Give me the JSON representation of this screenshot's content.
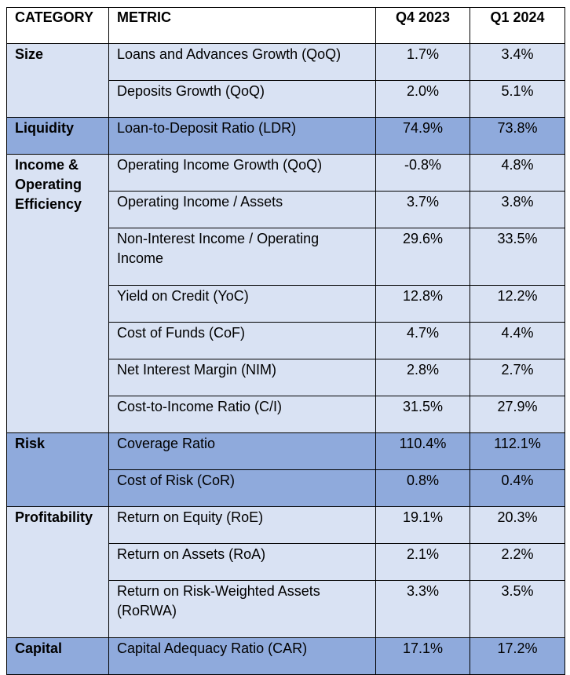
{
  "headers": [
    "CATEGORY",
    "METRIC",
    "Q4 2023",
    "Q1 2024"
  ],
  "groups": [
    {
      "category": "Size",
      "shade": "light",
      "rows": [
        {
          "metric": "Loans and Advances Growth (QoQ)",
          "q4_2023": "1.7%",
          "q1_2024": "3.4%"
        },
        {
          "metric": "Deposits Growth (QoQ)",
          "q4_2023": "2.0%",
          "q1_2024": "5.1%"
        }
      ]
    },
    {
      "category": "Liquidity",
      "shade": "dark",
      "rows": [
        {
          "metric": "Loan-to-Deposit Ratio (LDR)",
          "q4_2023": "74.9%",
          "q1_2024": "73.8%"
        }
      ]
    },
    {
      "category": "Income & Operating Efficiency",
      "shade": "light",
      "rows": [
        {
          "metric": "Operating Income Growth (QoQ)",
          "q4_2023": "-0.8%",
          "q1_2024": "4.8%"
        },
        {
          "metric": "Operating Income / Assets",
          "q4_2023": "3.7%",
          "q1_2024": "3.8%"
        },
        {
          "metric": "Non-Interest Income / Operating Income",
          "q4_2023": "29.6%",
          "q1_2024": "33.5%"
        },
        {
          "metric": "Yield on Credit (YoC)",
          "q4_2023": "12.8%",
          "q1_2024": "12.2%"
        },
        {
          "metric": "Cost of Funds (CoF)",
          "q4_2023": "4.7%",
          "q1_2024": "4.4%"
        },
        {
          "metric": "Net Interest Margin (NIM)",
          "q4_2023": "2.8%",
          "q1_2024": "2.7%"
        },
        {
          "metric": "Cost-to-Income Ratio (C/I)",
          "q4_2023": "31.5%",
          "q1_2024": "27.9%"
        }
      ]
    },
    {
      "category": "Risk",
      "shade": "dark",
      "rows": [
        {
          "metric": "Coverage Ratio",
          "q4_2023": "110.4%",
          "q1_2024": "112.1%"
        },
        {
          "metric": "Cost of Risk (CoR)",
          "q4_2023": "0.8%",
          "q1_2024": "0.4%"
        }
      ]
    },
    {
      "category": "Profitability",
      "shade": "light",
      "rows": [
        {
          "metric": "Return on Equity (RoE)",
          "q4_2023": "19.1%",
          "q1_2024": "20.3%"
        },
        {
          "metric": "Return on Assets (RoA)",
          "q4_2023": "2.1%",
          "q1_2024": "2.2%"
        },
        {
          "metric": "Return on Risk-Weighted Assets (RoRWA)",
          "q4_2023": "3.3%",
          "q1_2024": "3.5%"
        }
      ]
    },
    {
      "category": "Capital",
      "shade": "dark",
      "rows": [
        {
          "metric": "Capital Adequacy Ratio (CAR)",
          "q4_2023": "17.1%",
          "q1_2024": "17.2%"
        }
      ]
    }
  ]
}
